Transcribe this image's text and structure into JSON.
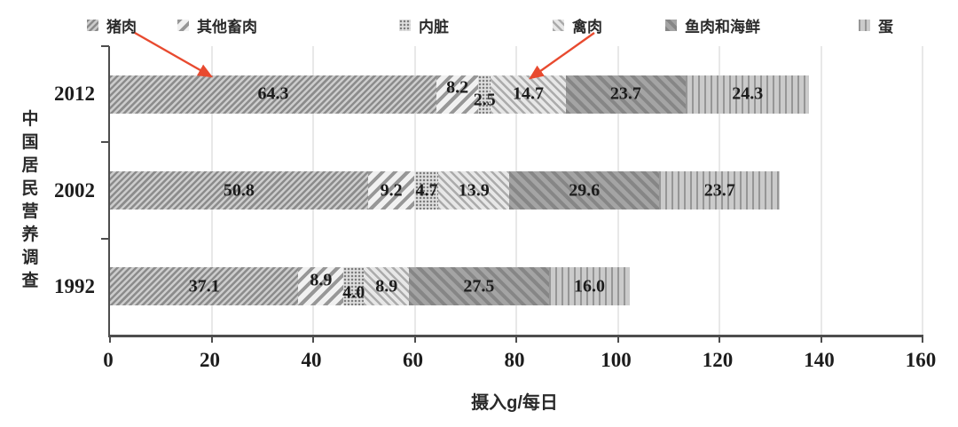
{
  "chart_data": {
    "type": "bar",
    "orientation": "horizontal",
    "stacked": true,
    "title": "",
    "xlabel": "摄入g/每日",
    "ylabel": "中国居民营养调查",
    "categories": [
      "2012",
      "2002",
      "1992"
    ],
    "series": [
      {
        "name": "猪肉",
        "pattern": "diag-dense",
        "values": [
          64.3,
          50.8,
          37.1
        ]
      },
      {
        "name": "其他畜肉",
        "pattern": "diag-wide",
        "values": [
          8.2,
          9.2,
          8.9
        ]
      },
      {
        "name": "内脏",
        "pattern": "dot-grid",
        "values": [
          2.5,
          4.7,
          4.0
        ]
      },
      {
        "name": "禽肉",
        "pattern": "diag-light",
        "values": [
          14.7,
          13.9,
          8.9
        ]
      },
      {
        "name": "鱼肉和海鲜",
        "pattern": "diag-dark",
        "values": [
          23.7,
          29.6,
          27.5
        ]
      },
      {
        "name": "蛋",
        "pattern": "vertical",
        "values": [
          24.3,
          23.7,
          16.0
        ]
      }
    ],
    "xlim": [
      0,
      160
    ],
    "xticks": [
      0,
      20,
      40,
      60,
      80,
      100,
      120,
      140,
      160
    ],
    "grid": true,
    "legend_position": "top",
    "annotation_arrow_color": "#e84a2f",
    "annotations": [
      {
        "from_legend": "猪肉",
        "target_series": "猪肉",
        "target_category": "2012"
      },
      {
        "from_legend": "禽肉",
        "target_series": "禽肉",
        "target_category": "2012"
      }
    ]
  }
}
